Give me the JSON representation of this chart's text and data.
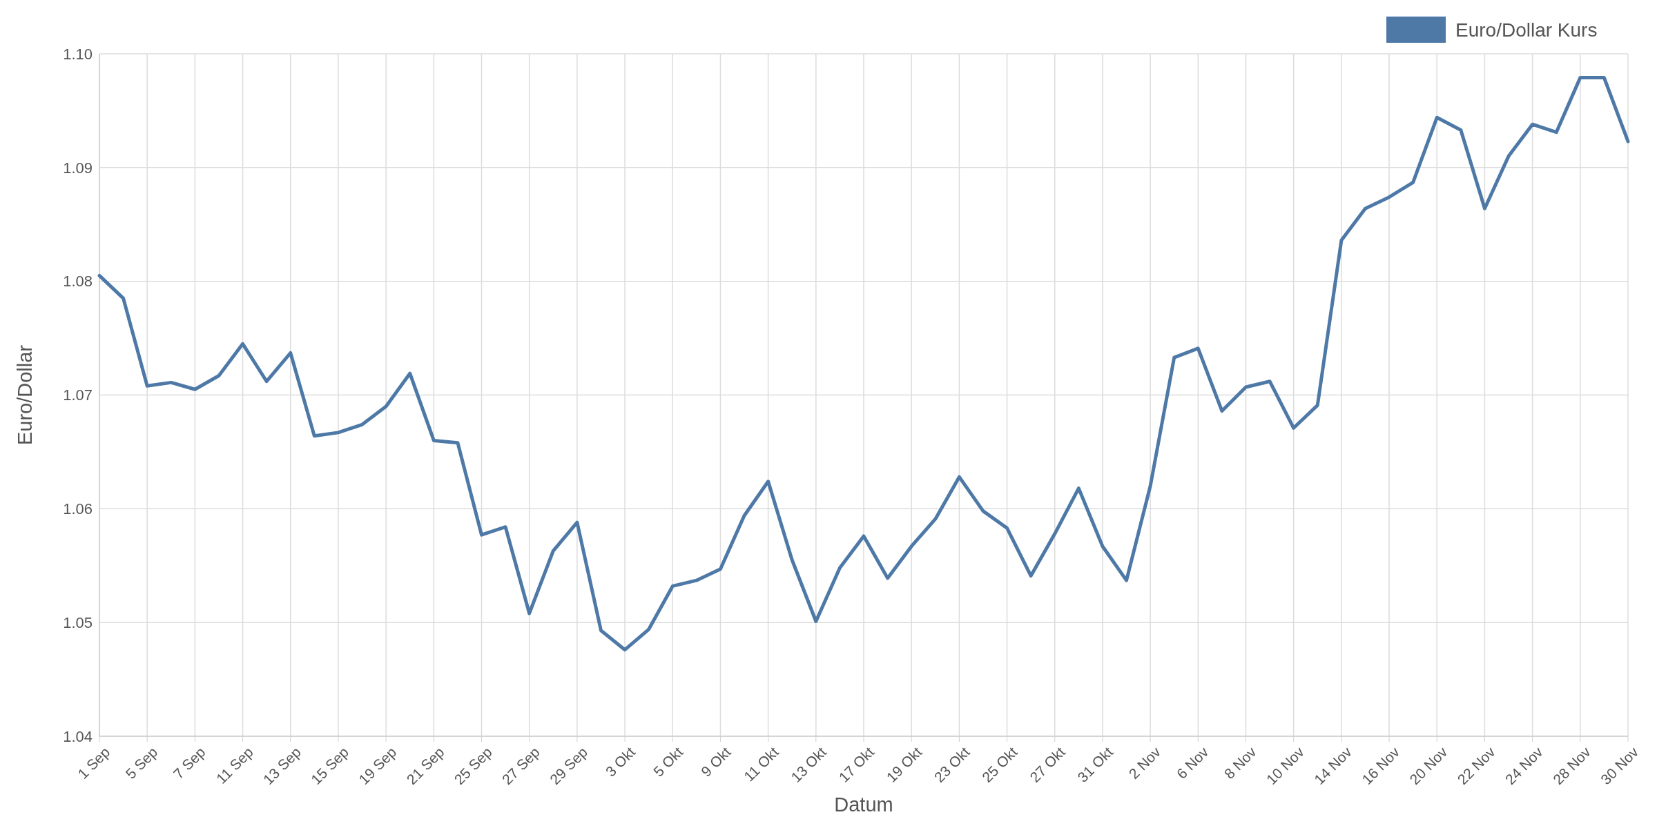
{
  "chart_data": {
    "type": "line",
    "xlabel": "Datum",
    "ylabel": "Euro/Dollar",
    "categories": [
      "1 Sep",
      null,
      "5 Sep",
      null,
      "7 Sep",
      null,
      "11 Sep",
      null,
      "13 Sep",
      null,
      "15 Sep",
      null,
      "19 Sep",
      null,
      "21 Sep",
      null,
      "25 Sep",
      null,
      "27 Sep",
      null,
      "29 Sep",
      null,
      "3 Okt",
      null,
      "5 Okt",
      null,
      "9 Okt",
      null,
      "11 Okt",
      null,
      "13 Okt",
      null,
      "17 Okt",
      null,
      "19 Okt",
      null,
      "23 Okt",
      null,
      "25 Okt",
      null,
      "27 Okt",
      null,
      "31 Okt",
      null,
      "2 Nov",
      null,
      "6 Nov",
      null,
      "8 Nov",
      null,
      "10 Nov",
      null,
      "14 Nov",
      null,
      "16 Nov",
      null,
      "20 Nov",
      null,
      "22 Nov",
      null,
      "24 Nov",
      null,
      "28 Nov",
      null,
      "30 Nov"
    ],
    "series": [
      {
        "name": "Euro/Dollar Kurs",
        "color": "#4e79a7",
        "values": [
          1.0805,
          1.0785,
          1.0708,
          1.0711,
          1.0705,
          1.0717,
          1.0745,
          1.0712,
          1.0737,
          1.0664,
          1.0667,
          1.0674,
          1.069,
          1.0719,
          1.066,
          1.0658,
          1.0577,
          1.0584,
          1.0508,
          1.0563,
          1.0588,
          1.0493,
          1.0476,
          1.0494,
          1.0532,
          1.0537,
          1.0547,
          1.0594,
          1.0624,
          1.0555,
          1.0501,
          1.0548,
          1.0576,
          1.0539,
          1.0567,
          1.0591,
          1.0628,
          1.0598,
          1.0583,
          1.0541,
          1.0578,
          1.0618,
          1.0567,
          1.0537,
          1.062,
          1.0733,
          1.0741,
          1.0686,
          1.0707,
          1.0712,
          1.0671,
          1.0691,
          1.0836,
          1.0864,
          1.0874,
          1.0887,
          1.0944,
          1.0933,
          1.0864,
          1.091,
          1.0938,
          1.0931,
          1.0979,
          1.0979,
          1.0923
        ]
      }
    ],
    "ylim": [
      1.04,
      1.1
    ],
    "yticks": [
      1.04,
      1.05,
      1.06,
      1.07,
      1.08,
      1.09,
      {
        "value": 1.1,
        "label": "1.10"
      }
    ],
    "grid": true,
    "legend": "top right",
    "line_style": "solid",
    "marker": "none"
  }
}
